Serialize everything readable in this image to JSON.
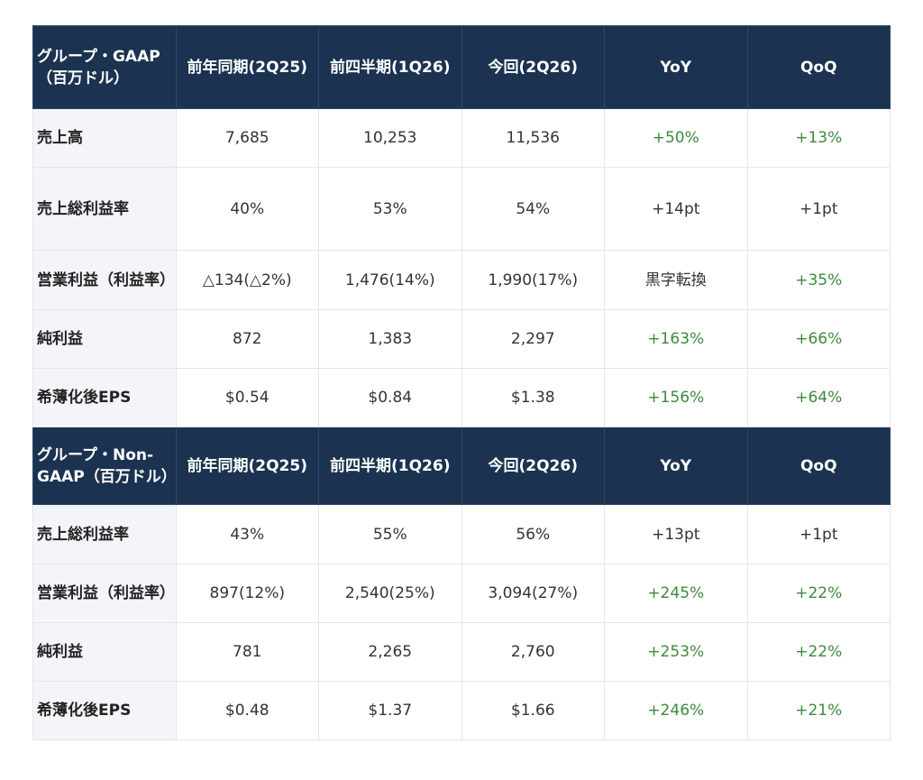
{
  "columns": [
    "前年同期(2Q25)",
    "前四半期(1Q26)",
    "今回(2Q26)",
    "YoY",
    "QoQ"
  ],
  "colors": {
    "header_bg": "#1b3350",
    "positive": "#3d8a3d",
    "label_bg": "#f4f5f9"
  },
  "sections": [
    {
      "title": "グループ・GAAP（百万ドル）",
      "rows": [
        {
          "label": "売上高",
          "cells": [
            "7,685",
            "10,253",
            "11,536",
            "+50%",
            "+13%"
          ]
        },
        {
          "label": "売上総利益率",
          "cells": [
            "40%",
            "53%",
            "54%",
            "+14pt",
            "+1pt"
          ]
        },
        {
          "label": "営業利益（利益率）",
          "cells": [
            "△134(△2%)",
            "1,476(14%)",
            "1,990(17%)",
            "黒字転換",
            "+35%"
          ]
        },
        {
          "label": "純利益",
          "cells": [
            "872",
            "1,383",
            "2,297",
            "+163%",
            "+66%"
          ]
        },
        {
          "label": "希薄化後EPS",
          "cells": [
            "$0.54",
            "$0.84",
            "$1.38",
            "+156%",
            "+64%"
          ]
        }
      ]
    },
    {
      "title": "グループ・Non-GAAP（百万ドル）",
      "rows": [
        {
          "label": "売上総利益率",
          "cells": [
            "43%",
            "55%",
            "56%",
            "+13pt",
            "+1pt"
          ]
        },
        {
          "label": "営業利益（利益率）",
          "cells": [
            "897(12%)",
            "2,540(25%)",
            "3,094(27%)",
            "+245%",
            "+22%"
          ]
        },
        {
          "label": "純利益",
          "cells": [
            "781",
            "2,265",
            "2,760",
            "+253%",
            "+22%"
          ]
        },
        {
          "label": "希薄化後EPS",
          "cells": [
            "$0.48",
            "$1.37",
            "$1.66",
            "+246%",
            "+21%"
          ]
        }
      ]
    }
  ]
}
